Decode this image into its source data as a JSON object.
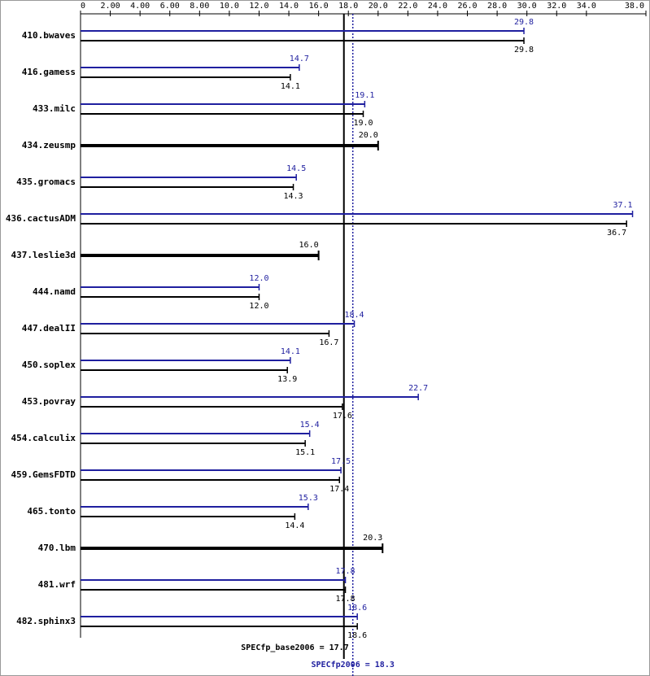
{
  "chart_data": {
    "type": "bar",
    "categories": [
      "410.bwaves",
      "416.gamess",
      "433.milc",
      "434.zeusmp",
      "435.gromacs",
      "436.cactusADM",
      "437.leslie3d",
      "444.namd",
      "447.dealII",
      "450.soplex",
      "453.povray",
      "454.calculix",
      "459.GemsFDTD",
      "465.tonto",
      "470.lbm",
      "481.wrf",
      "482.sphinx3"
    ],
    "series": [
      {
        "color": "#1f1f9f",
        "values": [
          29.8,
          14.7,
          19.1,
          null,
          14.5,
          37.1,
          null,
          12.0,
          18.4,
          14.1,
          22.7,
          15.4,
          17.5,
          15.3,
          null,
          17.8,
          18.6
        ],
        "value_labels": [
          "29.8",
          "14.7",
          "19.1",
          null,
          "14.5",
          "37.1",
          null,
          "12.0",
          "18.4",
          "14.1",
          "22.7",
          "15.4",
          "17.5",
          "15.3",
          null,
          "17.8",
          "18.6"
        ]
      },
      {
        "color": "#000000",
        "values": [
          29.8,
          14.1,
          19.0,
          20.0,
          14.3,
          36.7,
          16.0,
          12.0,
          16.7,
          13.9,
          17.6,
          15.1,
          17.4,
          14.4,
          20.3,
          17.8,
          18.6
        ],
        "value_labels": [
          "29.8",
          "14.1",
          "19.0",
          "20.0",
          "14.3",
          "36.7",
          "16.0",
          "12.0",
          "16.7",
          "13.9",
          "17.6",
          "15.1",
          "17.4",
          "14.4",
          "20.3",
          "17.8",
          "18.6"
        ]
      }
    ],
    "xlim": [
      0,
      38
    ],
    "xticks": [
      0,
      {
        "value": 2,
        "label": "2.00"
      },
      {
        "value": 4,
        "label": "4.00"
      },
      {
        "value": 6,
        "label": "6.00"
      },
      {
        "value": 8,
        "label": "8.00"
      },
      {
        "value": 10,
        "label": "10.0"
      },
      {
        "value": 12,
        "label": "12.0"
      },
      {
        "value": 14,
        "label": "14.0"
      },
      {
        "value": 16,
        "label": "16.0"
      },
      {
        "value": 18,
        "label": "18.0"
      },
      {
        "value": 20,
        "label": "20.0"
      },
      {
        "value": 22,
        "label": "22.0"
      },
      {
        "value": 24,
        "label": "24.0"
      },
      {
        "value": 26,
        "label": "26.0"
      },
      {
        "value": 28,
        "label": "28.0"
      },
      {
        "value": 30,
        "label": "30.0"
      },
      {
        "value": 32,
        "label": "32.0"
      },
      {
        "value": 34,
        "label": "34.0"
      },
      {
        "value": 38,
        "label": "38.0"
      }
    ],
    "reference_lines": [
      {
        "label": "SPECfp_base2006 = 17.7",
        "value": 17.7,
        "color": "#000000",
        "style": "solid"
      },
      {
        "label": "SPECfp2006 = 18.3",
        "value": 18.3,
        "color": "#1f1f9f",
        "style": "dotted"
      }
    ]
  }
}
